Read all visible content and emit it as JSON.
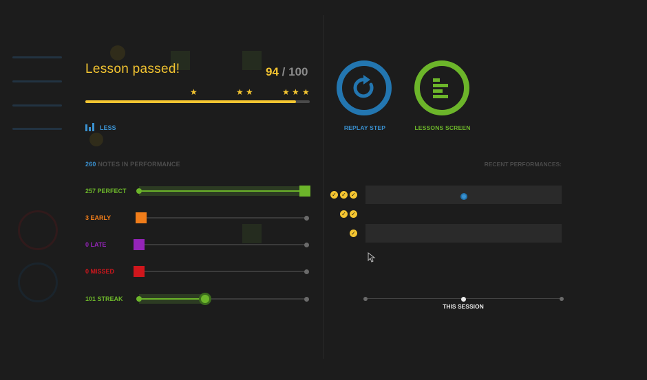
{
  "result": {
    "title": "Lesson passed!",
    "score": "94",
    "separator": "/",
    "max_score": "100",
    "progress_fraction": 0.94,
    "stars": [
      "★",
      "★",
      "★",
      "★",
      "★",
      "★"
    ]
  },
  "view_toggle": {
    "label": "LESS"
  },
  "notes": {
    "count": "260",
    "label": "NOTES IN PERFORMANCE"
  },
  "stats": [
    {
      "label": "257 PERFECT",
      "color": "#6cb52a",
      "value": 257,
      "fraction": 1.0
    },
    {
      "label": "3 EARLY",
      "color": "#f07d1a",
      "value": 3,
      "fraction": 0.0
    },
    {
      "label": "0 LATE",
      "color": "#9424b8",
      "value": 0,
      "fraction": 0.0
    },
    {
      "label": "0 MISSED",
      "color": "#d0161c",
      "value": 0,
      "fraction": 0.0
    },
    {
      "label": "101 STREAK",
      "color": "#6cb52a",
      "value": 101,
      "fraction": 0.39
    }
  ],
  "actions": {
    "replay": {
      "label": "REPLAY STEP",
      "color": "#2376b0"
    },
    "lessons": {
      "label": "LESSONS SCREEN",
      "color": "#6cb52a"
    }
  },
  "recent": {
    "label": "RECENT PERFORMANCES:",
    "check_glyph": "✓",
    "rows": [
      {
        "stars": 3,
        "session_position": 0.5
      },
      {
        "stars": 2
      },
      {
        "stars": 1
      }
    ],
    "timeline_label": "THIS SESSION"
  }
}
